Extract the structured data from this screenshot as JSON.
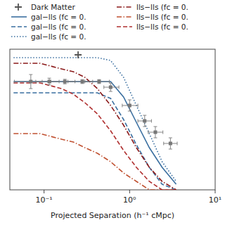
{
  "chart_data": {
    "type": "line",
    "title": "",
    "xlabel": "Projected Separation (h⁻¹ cMpc)",
    "log": "x",
    "grid": false,
    "legend": "top",
    "tick_labels": "x",
    "xlim": [
      0.0398107170553497,
      10
    ],
    "xticks": [
      {
        "value": 0.1,
        "label": "10⁻¹"
      },
      {
        "value": 1,
        "label": "10⁰"
      },
      {
        "value": 10,
        "label": "10¹"
      }
    ],
    "ylim": [
      -2.5,
      2.5
    ],
    "series": [
      {
        "name": "gal−lls (fc = 0.",
        "type": "line",
        "color": "#3a6fa0",
        "line_style": "solid",
        "x": [
          0.044,
          0.055,
          0.07,
          0.09,
          0.12,
          0.16,
          0.22,
          0.3,
          0.42,
          0.6,
          0.85,
          1.2,
          1.7,
          2.4,
          3.5
        ],
        "values": [
          1.35,
          1.35,
          1.35,
          1.35,
          1.35,
          1.35,
          1.35,
          1.35,
          1.35,
          1.35,
          0.8,
          -0.1,
          -1.0,
          -1.7,
          -2.3
        ]
      },
      {
        "name": "gal−lls (fc = 0.",
        "type": "line",
        "color": "#3a6fa0",
        "line_style": "dashed",
        "x": [
          0.044,
          0.055,
          0.07,
          0.09,
          0.12,
          0.16,
          0.22,
          0.3,
          0.42,
          0.6,
          0.85,
          1.2,
          1.7,
          2.4,
          3.5
        ],
        "values": [
          0.95,
          0.95,
          0.95,
          0.95,
          0.95,
          0.95,
          0.95,
          0.95,
          0.95,
          0.75,
          0.0,
          -0.9,
          -1.7,
          -2.3,
          -2.5
        ]
      },
      {
        "name": "gal−lls (fc = 0.",
        "type": "line",
        "color": "#3a6fa0",
        "line_style": "dotted",
        "x": [
          0.044,
          0.055,
          0.07,
          0.09,
          0.12,
          0.16,
          0.22,
          0.3,
          0.42,
          0.6,
          0.85,
          1.2,
          1.7,
          2.4,
          3.5
        ],
        "values": [
          2.2,
          2.2,
          2.2,
          2.2,
          2.2,
          2.2,
          2.2,
          2.2,
          2.2,
          2.1,
          1.5,
          0.5,
          -0.5,
          -1.5,
          -2.2
        ]
      },
      {
        "name": "lls−lls (fc = 0.",
        "type": "line",
        "color": "#8b1a1a",
        "line_style": "dashdot",
        "x": [
          0.044,
          0.055,
          0.07,
          0.09,
          0.12,
          0.16,
          0.22,
          0.3,
          0.42,
          0.6,
          0.85,
          1.2,
          1.7,
          2.4,
          3.5
        ],
        "values": [
          2.0,
          2.0,
          2.0,
          2.0,
          1.9,
          1.8,
          1.7,
          1.5,
          1.1,
          0.5,
          -0.2,
          -1.0,
          -1.7,
          -2.2,
          -2.5
        ]
      },
      {
        "name": "lls−lls (fc = 0.",
        "type": "line",
        "color": "#c05030",
        "line_style": "dashdot",
        "x": [
          0.044,
          0.055,
          0.07,
          0.09,
          0.12,
          0.16,
          0.22,
          0.3,
          0.42,
          0.6,
          0.85,
          1.2,
          1.7,
          2.4,
          3.5
        ],
        "values": [
          -0.5,
          -0.5,
          -0.5,
          -0.5,
          -0.6,
          -0.7,
          -0.8,
          -1.0,
          -1.2,
          -1.5,
          -1.9,
          -2.2,
          -2.5,
          -2.5,
          -2.5
        ]
      },
      {
        "name": "lls−lls (fc = 0.",
        "type": "line",
        "color": "#b03030",
        "line_style": "dashed",
        "x": [
          0.044,
          0.055,
          0.07,
          0.09,
          0.12,
          0.16,
          0.22,
          0.3,
          0.42,
          0.6,
          0.85,
          1.2,
          1.7,
          2.4,
          3.5
        ],
        "values": [
          1.3,
          1.3,
          1.3,
          1.3,
          1.2,
          1.1,
          0.9,
          0.6,
          0.2,
          -0.4,
          -1.1,
          -1.7,
          -2.2,
          -2.5,
          -2.5
        ]
      },
      {
        "type": "scatter",
        "marker": "square",
        "color": "#777777",
        "x": [
          0.07,
          0.115,
          0.175,
          0.28,
          0.44,
          0.6,
          1.0,
          1.5,
          2.0,
          3.0
        ],
        "values": [
          1.35,
          1.35,
          1.35,
          1.35,
          1.35,
          1.15,
          0.5,
          -0.05,
          -0.45,
          -0.85
        ],
        "yerr": [
          0.25,
          0.12,
          0.08,
          0.07,
          0.07,
          0.15,
          0.2,
          0.2,
          0.2,
          0.2
        ],
        "xerr_lo": [
          0.025,
          0.035,
          0.055,
          0.09,
          0.14,
          0.1,
          0.18,
          0.25,
          0.35,
          0.5
        ],
        "xerr_hi": [
          0.025,
          0.035,
          0.055,
          0.09,
          0.14,
          0.15,
          0.25,
          0.3,
          0.45,
          0.6
        ]
      },
      {
        "name": "Dark Matter",
        "type": "scatter",
        "marker": "plus",
        "color": "#555555",
        "x": [
          0.25
        ],
        "values": [
          2.3
        ]
      }
    ]
  }
}
